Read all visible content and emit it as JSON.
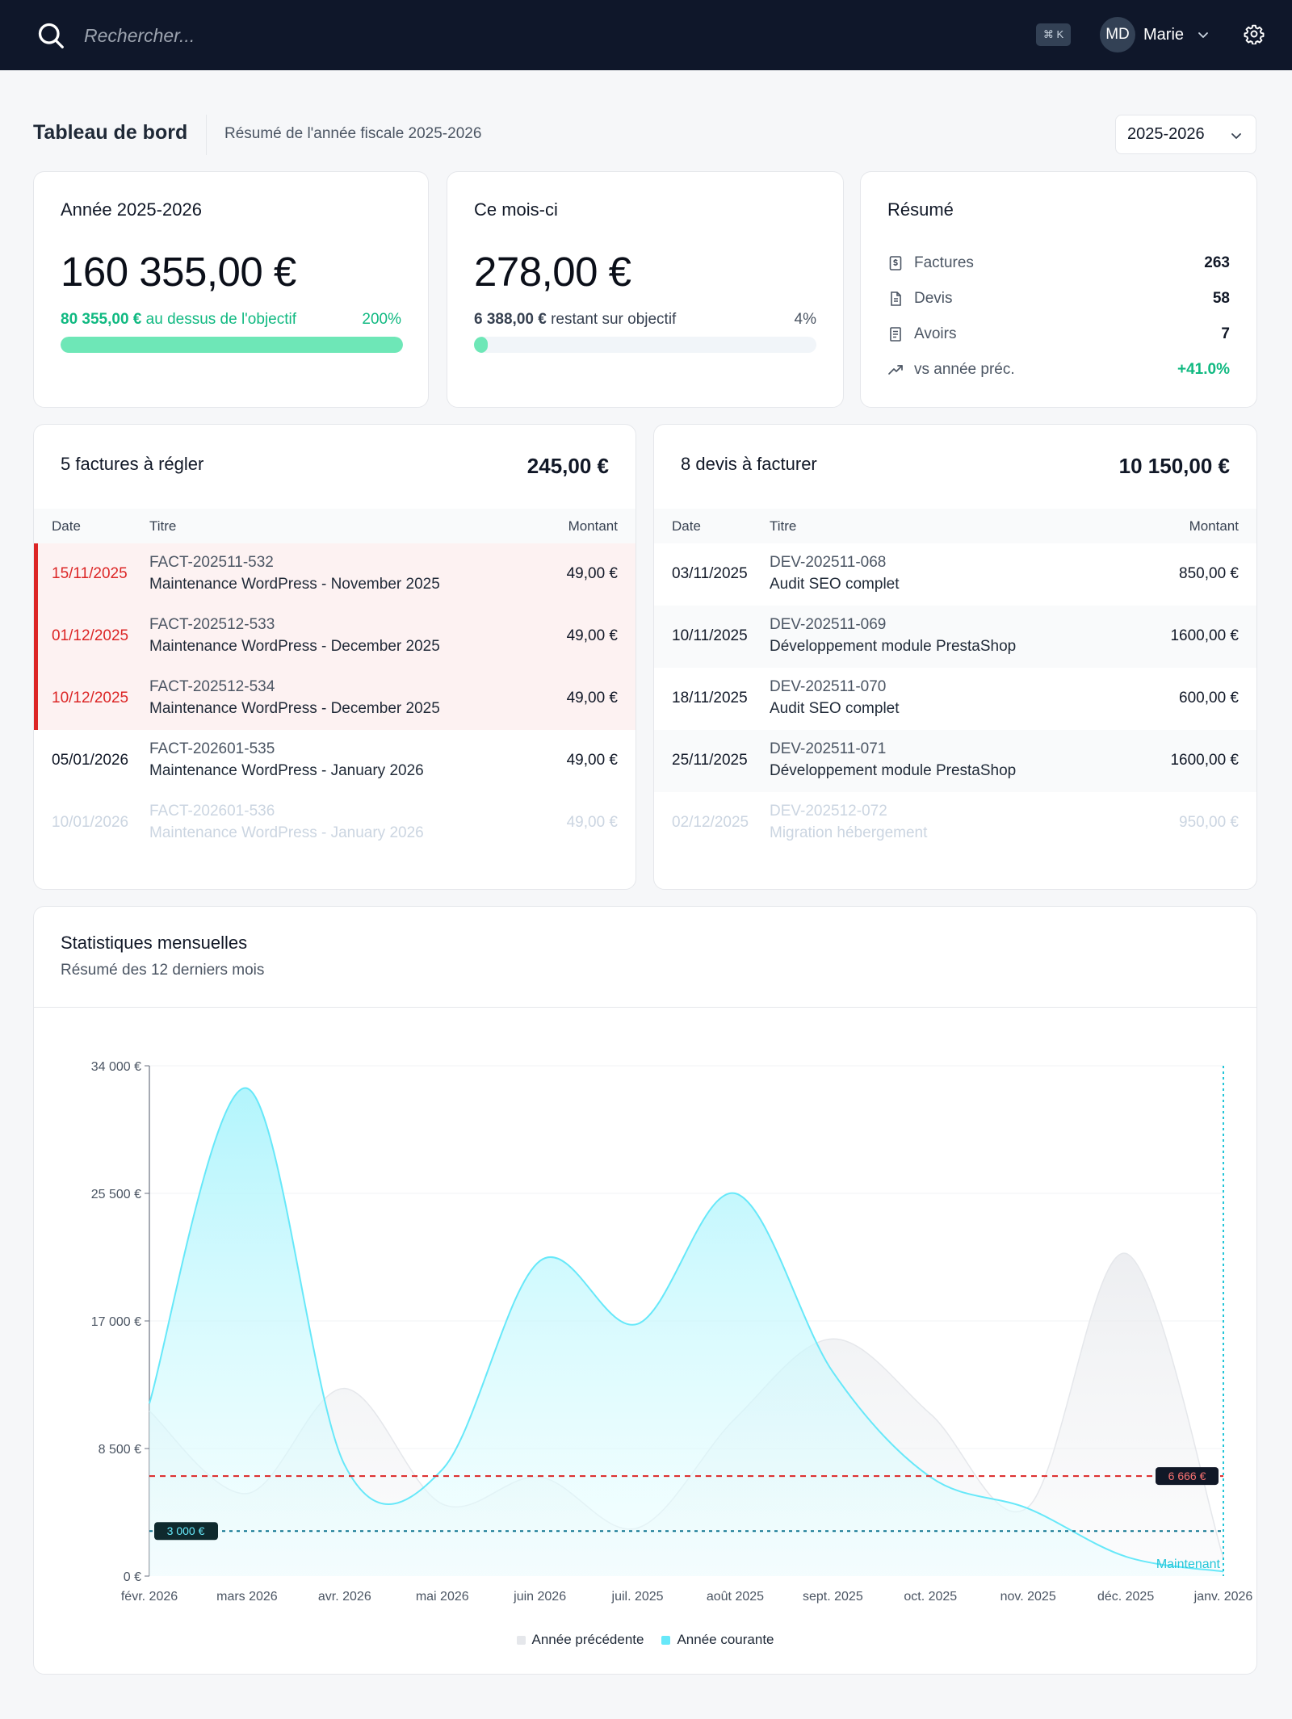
{
  "search": {
    "placeholder": "Rechercher...",
    "shortcut": "⌘ K"
  },
  "user": {
    "initials": "MD",
    "name": "Marie"
  },
  "header": {
    "title": "Tableau de bord",
    "subtitle": "Résumé de l'année fiscale 2025-2026",
    "year_selected": "2025-2026"
  },
  "stats": {
    "year": {
      "title": "Année 2025-2026",
      "amount": "160 355,00 €",
      "progress_value": "80 355,00 €",
      "progress_text": " au dessus de l'objectif",
      "progress_pct": "200%",
      "fill_fraction": 1.0
    },
    "month": {
      "title": "Ce mois-ci",
      "amount": "278,00 €",
      "progress_value": "6 388,00 €",
      "progress_text": " restant sur objectif",
      "progress_pct": "4%",
      "fill_fraction": 0.04
    }
  },
  "summary": {
    "title": "Résumé",
    "rows": [
      {
        "icon": "dollar-doc-icon",
        "label": "Factures",
        "value": "263"
      },
      {
        "icon": "document-icon",
        "label": "Devis",
        "value": "58"
      },
      {
        "icon": "receipt-icon",
        "label": "Avoirs",
        "value": "7"
      },
      {
        "icon": "trend-up-icon",
        "label": "vs année préc.",
        "value": "+41.0%"
      }
    ]
  },
  "invoices": {
    "title": "5 factures à régler",
    "total": "245,00 €",
    "headers": {
      "date": "Date",
      "title": "Titre",
      "amount": "Montant"
    },
    "rows": [
      {
        "date": "15/11/2025",
        "ref": "FACT-202511-532",
        "desc": "Maintenance WordPress - November 2025",
        "amount": "49,00 €",
        "status": "overdue"
      },
      {
        "date": "01/12/2025",
        "ref": "FACT-202512-533",
        "desc": "Maintenance WordPress - December 2025",
        "amount": "49,00 €",
        "status": "overdue"
      },
      {
        "date": "10/12/2025",
        "ref": "FACT-202512-534",
        "desc": "Maintenance WordPress - December 2025",
        "amount": "49,00 €",
        "status": "overdue"
      },
      {
        "date": "05/01/2026",
        "ref": "FACT-202601-535",
        "desc": "Maintenance WordPress - January 2026",
        "amount": "49,00 €",
        "status": "normal"
      },
      {
        "date": "10/01/2026",
        "ref": "FACT-202601-536",
        "desc": "Maintenance WordPress - January 2026",
        "amount": "49,00 €",
        "status": "faded"
      }
    ]
  },
  "quotes": {
    "title": "8 devis à facturer",
    "total": "10 150,00 €",
    "headers": {
      "date": "Date",
      "title": "Titre",
      "amount": "Montant"
    },
    "rows": [
      {
        "date": "03/11/2025",
        "ref": "DEV-202511-068",
        "desc": "Audit SEO complet",
        "amount": "850,00 €",
        "status": "normal"
      },
      {
        "date": "10/11/2025",
        "ref": "DEV-202511-069",
        "desc": "Développement module PrestaShop",
        "amount": "1600,00 €",
        "status": "alt"
      },
      {
        "date": "18/11/2025",
        "ref": "DEV-202511-070",
        "desc": "Audit SEO complet",
        "amount": "600,00 €",
        "status": "normal"
      },
      {
        "date": "25/11/2025",
        "ref": "DEV-202511-071",
        "desc": "Développement module PrestaShop",
        "amount": "1600,00 €",
        "status": "alt"
      },
      {
        "date": "02/12/2025",
        "ref": "DEV-202512-072",
        "desc": "Migration hébergement",
        "amount": "950,00 €",
        "status": "faded"
      }
    ]
  },
  "chart_section": {
    "title": "Statistiques mensuelles",
    "subtitle": "Résumé des 12 derniers mois"
  },
  "chart_data": {
    "type": "area",
    "categories": [
      "févr. 2026",
      "mars 2026",
      "avr. 2026",
      "mai 2026",
      "juin 2026",
      "juil. 2025",
      "août 2025",
      "sept. 2025",
      "oct. 2025",
      "nov. 2025",
      "déc. 2025",
      "janv. 2026"
    ],
    "series": [
      {
        "name": "Année précédente",
        "color": "#d1d5db",
        "values": [
          11000,
          5500,
          12500,
          4800,
          6600,
          3200,
          10500,
          15800,
          10800,
          4600,
          21500,
          1200
        ]
      },
      {
        "name": "Année courante",
        "color": "#67e8f9",
        "values": [
          11500,
          32500,
          7400,
          7100,
          21000,
          16800,
          25500,
          13600,
          6600,
          4500,
          1300,
          300
        ]
      }
    ],
    "y_ticks": [
      0,
      8500,
      17000,
      25500,
      34000
    ],
    "y_tick_labels": [
      "0 €",
      "8 500 €",
      "17 000 €",
      "25 500 €",
      "34 000 €"
    ],
    "ylim": [
      0,
      34000
    ],
    "reference_lines": [
      {
        "value": 6666,
        "label": "6 666 €",
        "color": "#dc2626"
      },
      {
        "value": 3000,
        "label": "3 000 €",
        "color": "#0e7490"
      }
    ],
    "now_marker": {
      "label": "Maintenant",
      "color": "#22c5d8"
    },
    "legend_position": "bottom-center",
    "grid": true
  },
  "colors": {
    "topbar": "#0f172a",
    "success": "#10b981",
    "danger": "#dc2626",
    "accent": "#67e8f9"
  }
}
